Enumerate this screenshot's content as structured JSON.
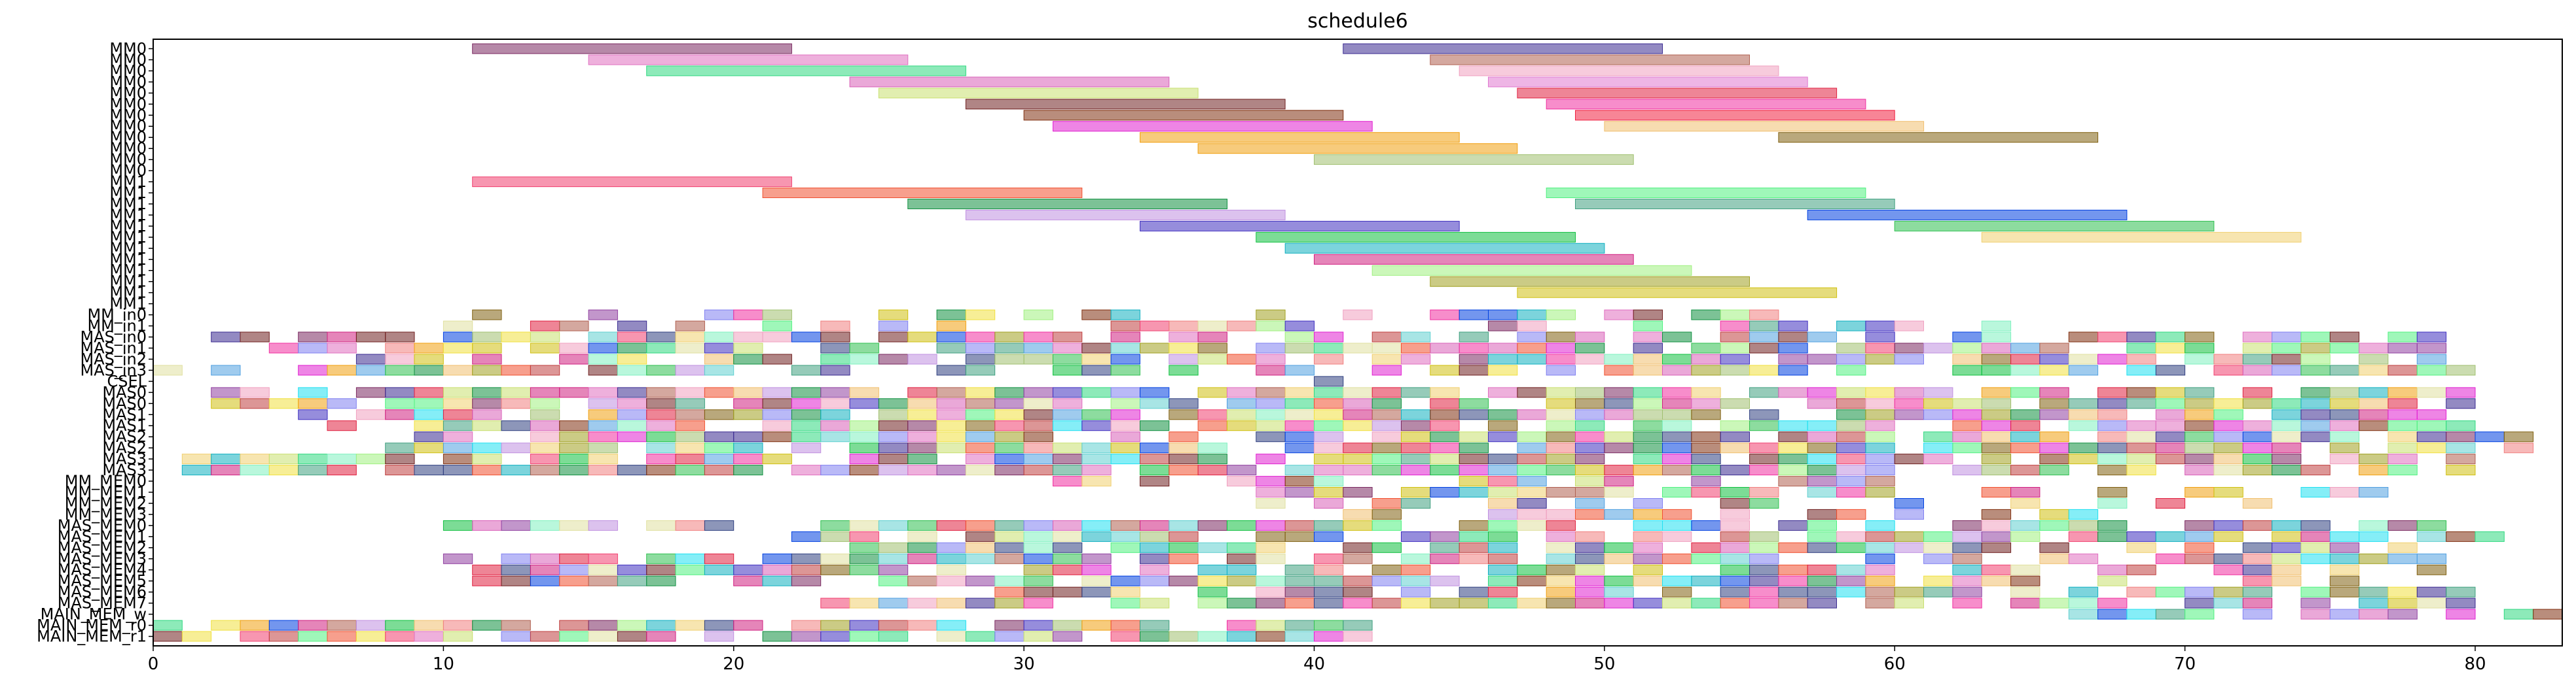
{
  "chart_data": {
    "type": "gantt",
    "title": "schedule6",
    "xlim": [
      0,
      83
    ],
    "xticks": [
      "0",
      "10",
      "20",
      "30",
      "40",
      "50",
      "60",
      "70",
      "80"
    ],
    "rows": [
      "MM0",
      "MM0",
      "MM0",
      "MM0",
      "MM0",
      "MM0",
      "MM0",
      "MM0",
      "MM0",
      "MM0",
      "MM0",
      "MM0",
      "MM1",
      "MM1",
      "MM1",
      "MM1",
      "MM1",
      "MM1",
      "MM1",
      "MM1",
      "MM1",
      "MM1",
      "MM1",
      "MM1",
      "MM_in0",
      "MM_in1",
      "MAS_in0",
      "MAS_in1",
      "MAS_in2",
      "MAS_in3",
      "CSEL",
      "MAS0",
      "MAS0",
      "MAS1",
      "MAS1",
      "MAS2",
      "MAS2",
      "MAS3",
      "MAS3",
      "MM_MEM0",
      "MM_MEM1",
      "MM_MEM2",
      "MM_MEM3",
      "MAS_MEM0",
      "MAS_MEM1",
      "MAS_MEM2",
      "MAS_MEM3",
      "MAS_MEM4",
      "MAS_MEM5",
      "MAS_MEM6",
      "MAS_MEM7",
      "MAIN_MEM_w",
      "MAIN_MEM_r0",
      "MAIN_MEM_r1"
    ],
    "long_tasks": [
      [
        0,
        11,
        22,
        "#7a2860"
      ],
      [
        0,
        41,
        52,
        "#3a2a90"
      ],
      [
        1,
        15,
        26,
        "#e070c0"
      ],
      [
        1,
        44,
        55,
        "#b06050"
      ],
      [
        2,
        17,
        28,
        "#30d880"
      ],
      [
        2,
        45,
        56,
        "#f0a0c0"
      ],
      [
        3,
        24,
        35,
        "#d860b8"
      ],
      [
        3,
        46,
        57,
        "#e078d0"
      ],
      [
        4,
        25,
        36,
        "#c8e070"
      ],
      [
        4,
        47,
        58,
        "#e02040"
      ],
      [
        5,
        28,
        39,
        "#702020"
      ],
      [
        5,
        48,
        59,
        "#f030a0"
      ],
      [
        6,
        30,
        41,
        "#803010"
      ],
      [
        6,
        49,
        60,
        "#f02040"
      ],
      [
        7,
        31,
        42,
        "#e020d0"
      ],
      [
        7,
        50,
        61,
        "#f0c070"
      ],
      [
        8,
        34,
        45,
        "#f0a010"
      ],
      [
        8,
        56,
        67,
        "#806010"
      ],
      [
        9,
        36,
        47,
        "#f0a010"
      ],
      [
        10,
        40,
        51,
        "#a0c070"
      ],
      [
        12,
        11,
        22,
        "#f04070"
      ],
      [
        13,
        21,
        32,
        "#f05030"
      ],
      [
        13,
        48,
        59,
        "#50f080"
      ],
      [
        14,
        26,
        37,
        "#109040"
      ],
      [
        14,
        49,
        60,
        "#40a080"
      ],
      [
        15,
        28,
        39,
        "#c090e0"
      ],
      [
        15,
        57,
        68,
        "#0040e0"
      ],
      [
        16,
        34,
        45,
        "#4030c0"
      ],
      [
        16,
        60,
        71,
        "#30c050"
      ],
      [
        17,
        38,
        49,
        "#10c040"
      ],
      [
        17,
        63,
        74,
        "#f0d070"
      ],
      [
        18,
        39,
        50,
        "#10b0c0"
      ],
      [
        19,
        40,
        51,
        "#d02080"
      ],
      [
        20,
        42,
        53,
        "#a0f080"
      ],
      [
        21,
        44,
        55,
        "#a0a020"
      ],
      [
        22,
        47,
        58,
        "#d0c010"
      ]
    ]
  }
}
